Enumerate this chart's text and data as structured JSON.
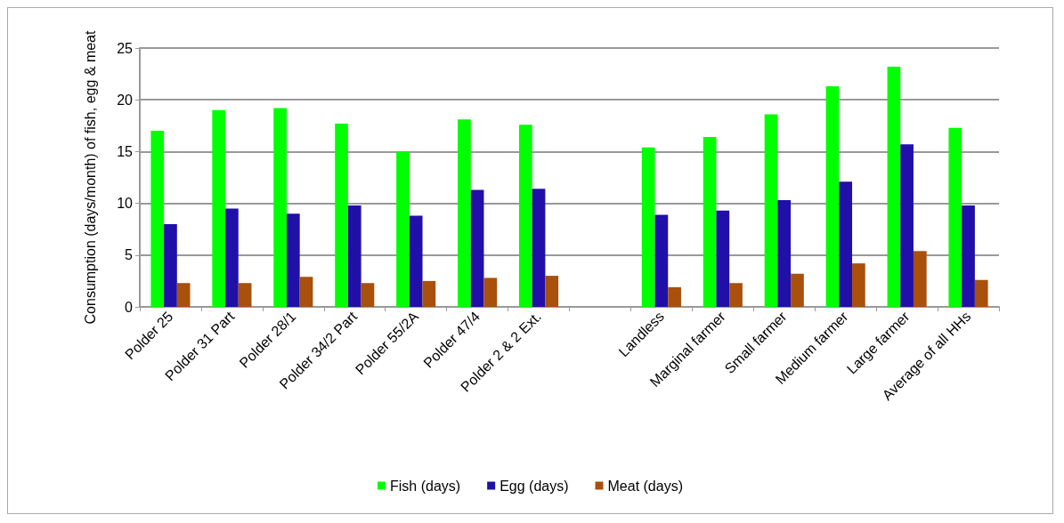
{
  "chart_data": {
    "type": "bar",
    "ylabel": "Consumption (days/month) of fish, egg & meat",
    "categories": [
      "Polder 25",
      "Polder 31 Part",
      "Polder 28/1",
      "Polder 34/2 Part",
      "Polder 55/2A",
      "Polder 47/4",
      "Polder 2 & 2 Ext.",
      null,
      "Landless",
      "Marginal farmer",
      "Small farmer",
      "Medium farmer",
      "Large farmer",
      "Average of all HHs"
    ],
    "series": [
      {
        "name": "Fish (days)",
        "color": "#00ff00",
        "values": [
          17.0,
          19.0,
          19.2,
          17.7,
          15.0,
          18.1,
          17.6,
          null,
          15.4,
          16.4,
          18.6,
          21.3,
          23.2,
          17.3
        ]
      },
      {
        "name": "Egg (days)",
        "color": "#2010a8",
        "values": [
          8.0,
          9.5,
          9.0,
          9.8,
          8.8,
          11.3,
          11.4,
          null,
          8.9,
          9.3,
          10.3,
          12.1,
          15.7,
          9.8
        ]
      },
      {
        "name": "Meat (days)",
        "color": "#a8500c",
        "values": [
          2.3,
          2.3,
          2.9,
          2.3,
          2.5,
          2.8,
          3.0,
          null,
          1.9,
          2.3,
          3.2,
          4.2,
          5.4,
          2.6
        ]
      }
    ],
    "ylim": [
      0,
      25
    ],
    "yticks": [
      0,
      5,
      10,
      15,
      20,
      25
    ],
    "grid": "y",
    "legend": "bottom"
  }
}
